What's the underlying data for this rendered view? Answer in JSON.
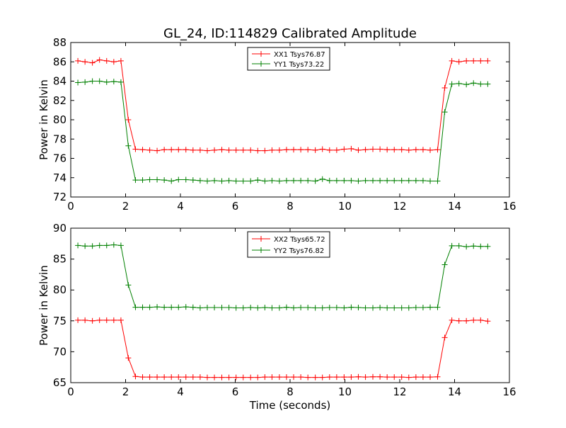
{
  "chart_data": [
    {
      "type": "line",
      "title": "GL_24, ID:114829 Calibrated Amplitude",
      "xlabel": "",
      "ylabel": "Power in Kelvin",
      "xlim": [
        0,
        16
      ],
      "ylim": [
        72,
        88
      ],
      "xticks": [
        0,
        2,
        4,
        6,
        8,
        10,
        12,
        14,
        16
      ],
      "yticks": [
        72,
        74,
        76,
        78,
        80,
        82,
        84,
        86,
        88
      ],
      "legend_position": "top-center",
      "x": [
        0.26,
        0.52,
        0.79,
        1.05,
        1.31,
        1.57,
        1.83,
        2.1,
        2.36,
        2.62,
        2.88,
        3.15,
        3.41,
        3.67,
        3.93,
        4.2,
        4.46,
        4.72,
        4.98,
        5.24,
        5.51,
        5.77,
        6.03,
        6.29,
        6.56,
        6.82,
        7.08,
        7.34,
        7.61,
        7.87,
        8.13,
        8.39,
        8.65,
        8.92,
        9.18,
        9.44,
        9.7,
        9.97,
        10.23,
        10.49,
        10.75,
        11.02,
        11.28,
        11.54,
        11.8,
        12.07,
        12.33,
        12.59,
        12.85,
        13.11,
        13.38,
        13.64,
        13.9,
        14.16,
        14.43,
        14.69,
        14.95,
        15.21
      ],
      "series": [
        {
          "name": "XX1 Tsys76.87",
          "color": "#ff0000",
          "values": [
            86.1,
            86.0,
            85.9,
            86.2,
            86.1,
            86.0,
            86.1,
            80.0,
            76.95,
            76.9,
            76.85,
            76.8,
            76.9,
            76.9,
            76.9,
            76.9,
            76.85,
            76.85,
            76.8,
            76.85,
            76.9,
            76.85,
            76.85,
            76.85,
            76.85,
            76.8,
            76.8,
            76.85,
            76.85,
            76.9,
            76.9,
            76.9,
            76.9,
            76.85,
            76.95,
            76.85,
            76.85,
            76.95,
            77.0,
            76.85,
            76.9,
            76.95,
            76.95,
            76.9,
            76.9,
            76.9,
            76.85,
            76.9,
            76.9,
            76.85,
            76.9,
            83.3,
            86.1,
            86.0,
            86.1,
            86.1,
            86.1,
            86.1
          ]
        },
        {
          "name": "YY1 Tsys73.22",
          "color": "#008000",
          "values": [
            83.85,
            83.9,
            84.0,
            84.0,
            83.9,
            83.95,
            83.9,
            77.3,
            73.75,
            73.75,
            73.8,
            73.8,
            73.75,
            73.65,
            73.8,
            73.8,
            73.75,
            73.7,
            73.65,
            73.7,
            73.65,
            73.7,
            73.65,
            73.65,
            73.65,
            73.75,
            73.65,
            73.7,
            73.65,
            73.7,
            73.7,
            73.7,
            73.7,
            73.65,
            73.85,
            73.7,
            73.7,
            73.7,
            73.7,
            73.65,
            73.7,
            73.7,
            73.7,
            73.7,
            73.7,
            73.7,
            73.7,
            73.7,
            73.7,
            73.65,
            73.65,
            80.8,
            83.7,
            83.75,
            83.65,
            83.8,
            83.7,
            83.7
          ]
        }
      ]
    },
    {
      "type": "line",
      "title": "",
      "xlabel": "Time (seconds)",
      "ylabel": "Power in Kelvin",
      "xlim": [
        0,
        16
      ],
      "ylim": [
        65,
        90
      ],
      "xticks": [
        0,
        2,
        4,
        6,
        8,
        10,
        12,
        14,
        16
      ],
      "yticks": [
        65,
        70,
        75,
        80,
        85,
        90
      ],
      "legend_position": "top-center",
      "x": [
        0.26,
        0.52,
        0.79,
        1.05,
        1.31,
        1.57,
        1.83,
        2.1,
        2.36,
        2.62,
        2.88,
        3.15,
        3.41,
        3.67,
        3.93,
        4.2,
        4.46,
        4.72,
        4.98,
        5.24,
        5.51,
        5.77,
        6.03,
        6.29,
        6.56,
        6.82,
        7.08,
        7.34,
        7.61,
        7.87,
        8.13,
        8.39,
        8.65,
        8.92,
        9.18,
        9.44,
        9.7,
        9.97,
        10.23,
        10.49,
        10.75,
        11.02,
        11.28,
        11.54,
        11.8,
        12.07,
        12.33,
        12.59,
        12.85,
        13.11,
        13.38,
        13.64,
        13.9,
        14.16,
        14.43,
        14.69,
        14.95,
        15.21
      ],
      "series": [
        {
          "name": "XX2 Tsys65.72",
          "color": "#ff0000",
          "values": [
            75.1,
            75.1,
            75.0,
            75.1,
            75.1,
            75.1,
            75.1,
            69.0,
            66.0,
            65.9,
            65.9,
            65.9,
            65.9,
            65.9,
            65.9,
            65.9,
            65.9,
            65.9,
            65.85,
            65.85,
            65.85,
            65.85,
            65.85,
            65.85,
            65.85,
            65.85,
            65.9,
            65.9,
            65.9,
            65.9,
            65.9,
            65.9,
            65.85,
            65.85,
            65.85,
            65.9,
            65.9,
            65.9,
            65.9,
            65.95,
            65.9,
            65.95,
            65.95,
            65.9,
            65.9,
            65.9,
            65.85,
            65.9,
            65.9,
            65.9,
            65.95,
            72.3,
            75.1,
            75.0,
            75.0,
            75.1,
            75.1,
            74.95
          ]
        },
        {
          "name": "YY2 Tsys76.82",
          "color": "#008000",
          "values": [
            87.2,
            87.1,
            87.1,
            87.2,
            87.2,
            87.3,
            87.2,
            80.8,
            77.2,
            77.2,
            77.2,
            77.25,
            77.2,
            77.2,
            77.2,
            77.25,
            77.2,
            77.1,
            77.15,
            77.15,
            77.15,
            77.15,
            77.1,
            77.1,
            77.15,
            77.1,
            77.15,
            77.1,
            77.1,
            77.2,
            77.1,
            77.15,
            77.15,
            77.1,
            77.1,
            77.15,
            77.15,
            77.1,
            77.2,
            77.15,
            77.1,
            77.1,
            77.15,
            77.1,
            77.1,
            77.1,
            77.1,
            77.15,
            77.15,
            77.2,
            77.2,
            84.1,
            87.15,
            87.15,
            87.0,
            87.1,
            87.05,
            87.05
          ]
        }
      ]
    }
  ]
}
